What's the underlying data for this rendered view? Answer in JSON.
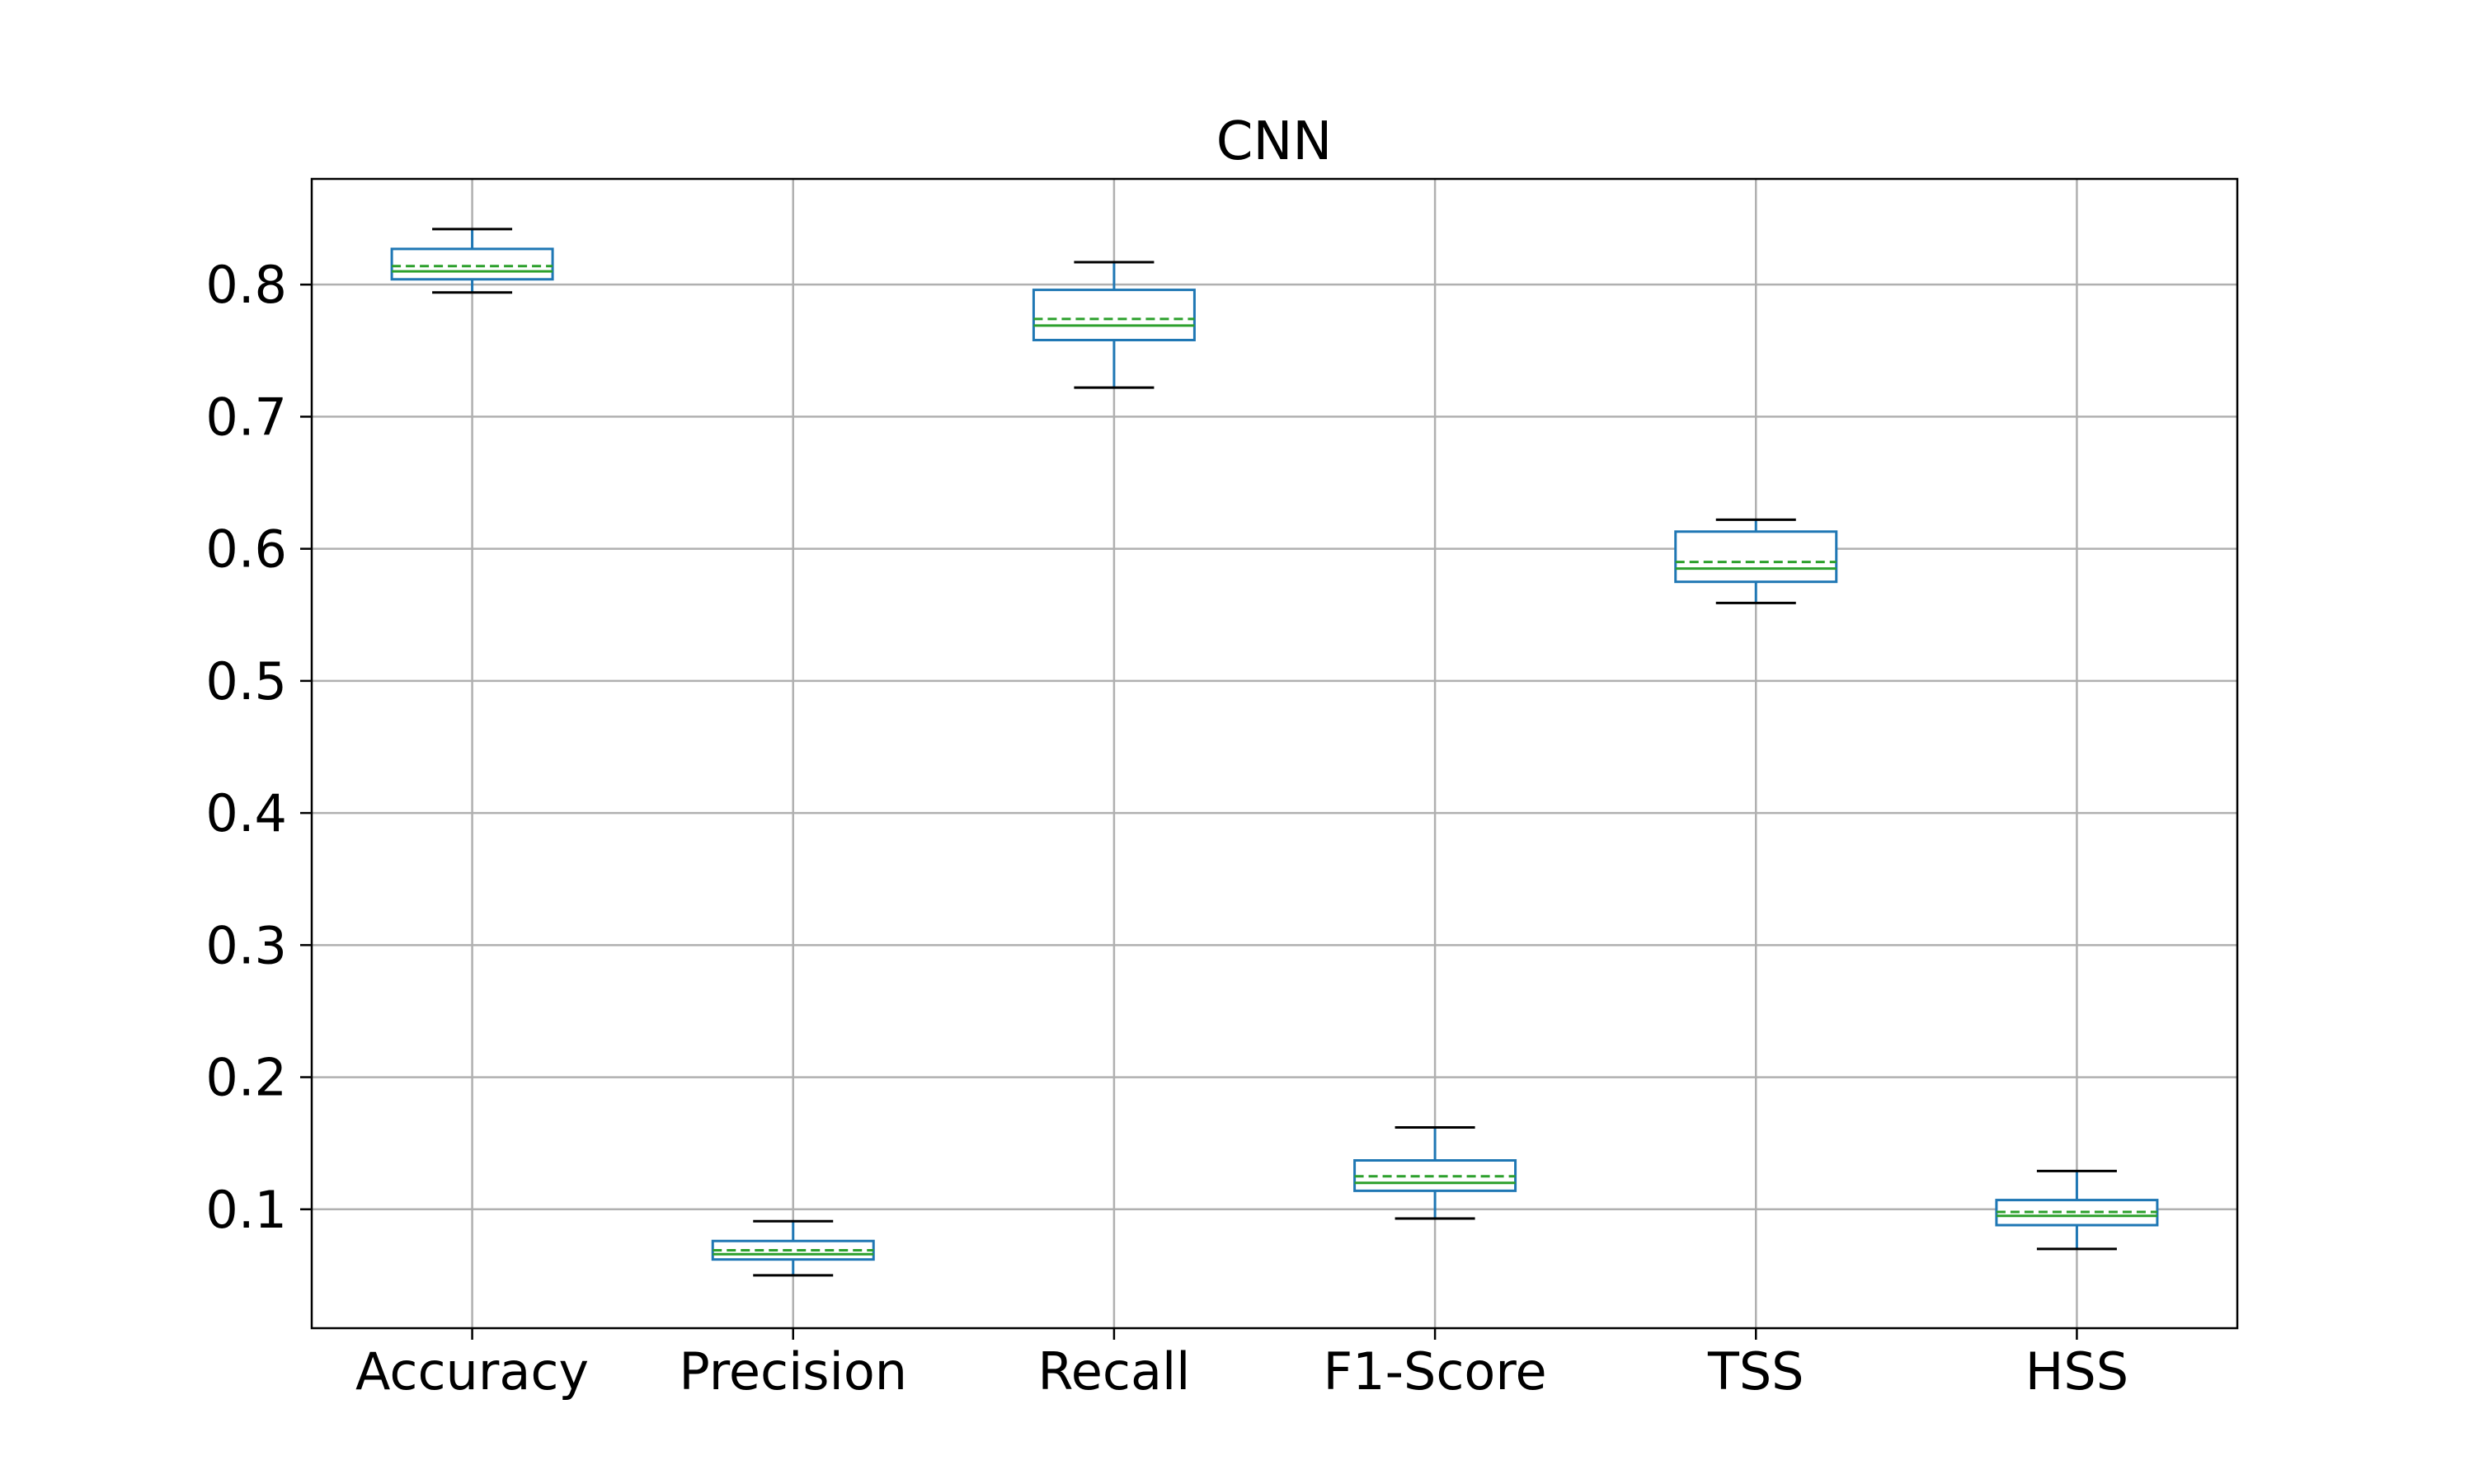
{
  "chart_data": {
    "type": "box",
    "title": "CNN",
    "xlabel": "",
    "ylabel": "",
    "categories": [
      "Accuracy",
      "Precision",
      "Recall",
      "F1-Score",
      "TSS",
      "HSS"
    ],
    "yticks": [
      "0.1",
      "0.2",
      "0.3",
      "0.4",
      "0.5",
      "0.6",
      "0.7",
      "0.8"
    ],
    "ylim": [
      0.01,
      0.88
    ],
    "grid": true,
    "legend": "none",
    "series": [
      {
        "category": "Accuracy",
        "whisker_low": 0.794,
        "q1": 0.804,
        "median": 0.81,
        "mean": 0.814,
        "q3": 0.827,
        "whisker_high": 0.842
      },
      {
        "category": "Precision",
        "whisker_low": 0.05,
        "q1": 0.062,
        "median": 0.066,
        "mean": 0.069,
        "q3": 0.076,
        "whisker_high": 0.091
      },
      {
        "category": "Recall",
        "whisker_low": 0.722,
        "q1": 0.758,
        "median": 0.769,
        "mean": 0.774,
        "q3": 0.796,
        "whisker_high": 0.817
      },
      {
        "category": "F1-Score",
        "whisker_low": 0.093,
        "q1": 0.114,
        "median": 0.12,
        "mean": 0.125,
        "q3": 0.137,
        "whisker_high": 0.162
      },
      {
        "category": "TSS",
        "whisker_low": 0.559,
        "q1": 0.575,
        "median": 0.585,
        "mean": 0.59,
        "q3": 0.613,
        "whisker_high": 0.622
      },
      {
        "category": "HSS",
        "whisker_low": 0.07,
        "q1": 0.088,
        "median": 0.095,
        "mean": 0.098,
        "q3": 0.107,
        "whisker_high": 0.129
      }
    ],
    "colors": {
      "box": "#1f77b4",
      "median": "#2ca02c",
      "mean": "#2ca02c",
      "caps": "#000000",
      "grid": "#b0b0b0",
      "frame": "#000000"
    }
  }
}
